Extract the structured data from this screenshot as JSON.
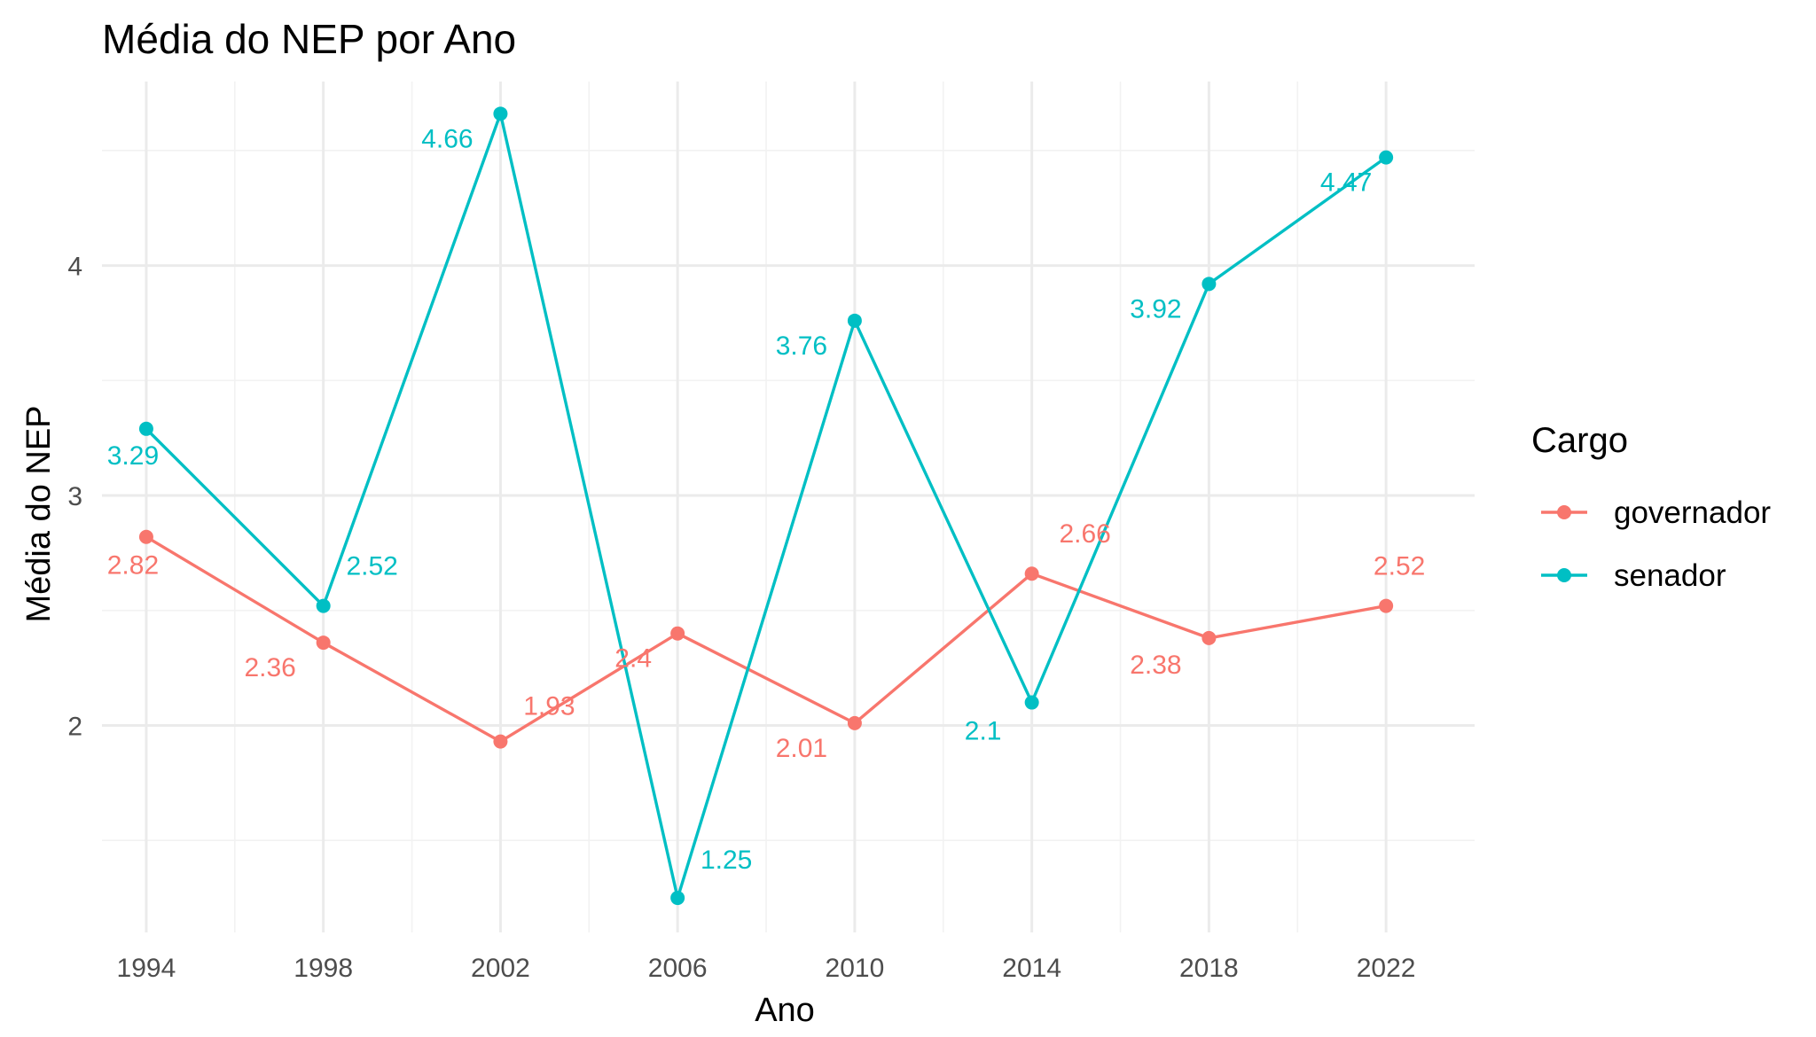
{
  "chart_data": {
    "type": "line",
    "title": "Média do NEP por Ano",
    "xlabel": "Ano",
    "ylabel": "Média do NEP",
    "x": [
      1994,
      1998,
      2002,
      2006,
      2010,
      2014,
      2018,
      2022
    ],
    "xlim": [
      1993,
      2024
    ],
    "ylim": [
      1.1,
      4.8
    ],
    "y_ticks": [
      2,
      3,
      4
    ],
    "grid": true,
    "legend": {
      "title": "Cargo",
      "position": "right"
    },
    "series": [
      {
        "name": "governador",
        "color": "#F8766D",
        "values": [
          2.82,
          2.36,
          1.93,
          2.4,
          2.01,
          2.66,
          2.38,
          2.52
        ]
      },
      {
        "name": "senador",
        "color": "#00BFC4",
        "values": [
          3.29,
          2.52,
          4.66,
          1.25,
          3.76,
          2.1,
          3.92,
          4.47
        ]
      }
    ]
  }
}
